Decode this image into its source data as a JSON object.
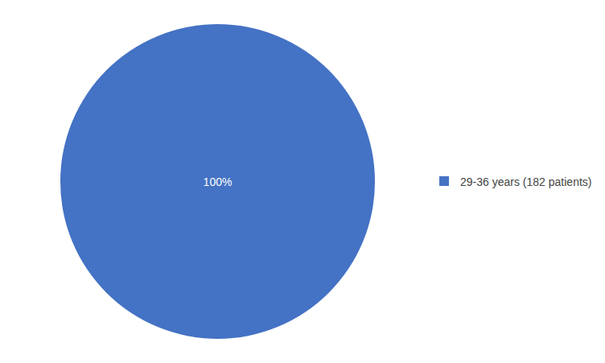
{
  "chart_data": {
    "type": "pie",
    "categories": [
      "29-36 years (182 patients)"
    ],
    "values": [
      100
    ],
    "value_labels": [
      "100%"
    ],
    "data_labels": true,
    "colors": [
      "#4472C4"
    ],
    "legend": "right"
  }
}
